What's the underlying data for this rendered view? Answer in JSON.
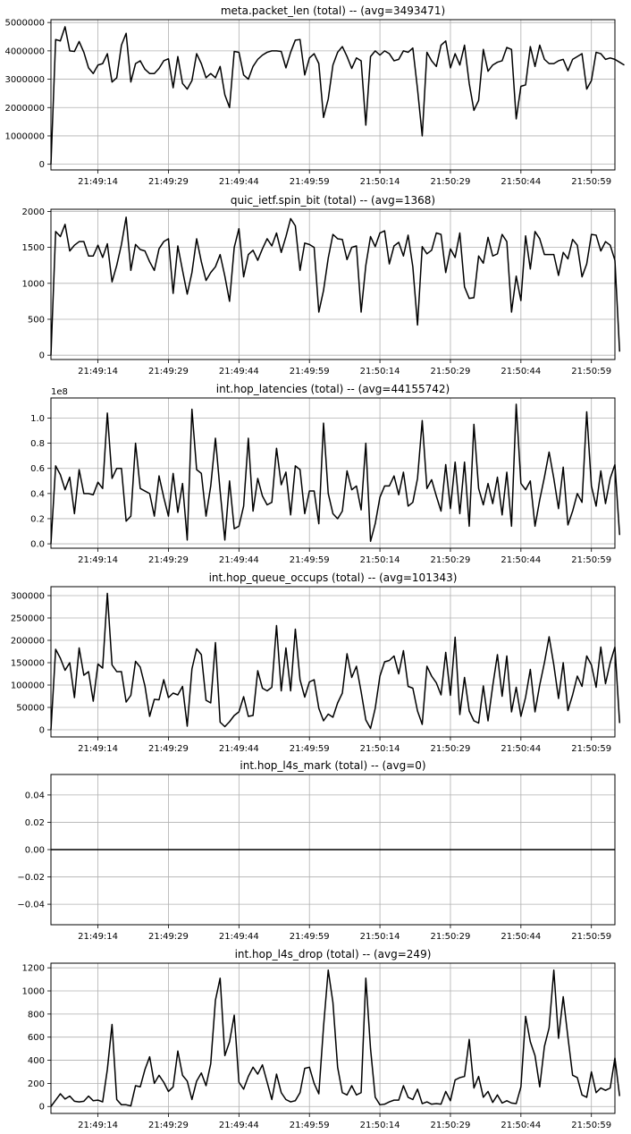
{
  "figure": {
    "background": "#ffffff",
    "line_color": "#000000",
    "grid_color": "#b0b0b0"
  },
  "chart_data": [
    {
      "type": "line",
      "title": "meta.packet_len (total) -- (avg=3493471)",
      "xticklabels": [
        "21:49:14",
        "21:49:29",
        "21:49:44",
        "21:49:59",
        "21:50:14",
        "21:50:29",
        "21:50:44",
        "21:50:59"
      ],
      "xtick_index": [
        10,
        25,
        40,
        55,
        70,
        85,
        100,
        115
      ],
      "x_count": 121,
      "ylim": [
        -200000,
        5100000
      ],
      "yticks": [
        0,
        1000000,
        2000000,
        3000000,
        4000000,
        5000000
      ],
      "yticklabels": [
        "0",
        "1000000",
        "2000000",
        "3000000",
        "4000000",
        "5000000"
      ],
      "offset_text": "",
      "grid": true,
      "values": [
        0,
        4400000,
        4350000,
        4850000,
        4000000,
        3980000,
        4330000,
        3950000,
        3400000,
        3200000,
        3500000,
        3550000,
        3900000,
        2900000,
        3050000,
        4200000,
        4620000,
        2900000,
        3550000,
        3650000,
        3350000,
        3200000,
        3200000,
        3380000,
        3650000,
        3720000,
        2700000,
        3800000,
        2850000,
        2650000,
        2950000,
        3900000,
        3550000,
        3050000,
        3200000,
        3050000,
        3450000,
        2450000,
        2000000,
        3980000,
        3950000,
        3150000,
        3000000,
        3450000,
        3700000,
        3850000,
        3950000,
        4000000,
        4000000,
        3980000,
        3400000,
        3950000,
        4380000,
        4400000,
        3150000,
        3750000,
        3900000,
        3550000,
        1650000,
        2300000,
        3500000,
        3950000,
        4150000,
        3800000,
        3380000,
        3750000,
        3650000,
        1380000,
        3800000,
        4000000,
        3850000,
        4000000,
        3900000,
        3650000,
        3700000,
        4000000,
        3950000,
        4100000,
        2650000,
        1000000,
        3950000,
        3650000,
        3450000,
        4200000,
        4350000,
        3400000,
        3900000,
        3500000,
        4200000,
        2850000,
        1900000,
        2250000,
        4050000,
        3280000,
        3500000,
        3600000,
        3650000,
        4120000,
        4050000,
        1600000,
        2750000,
        2800000,
        4150000,
        3450000,
        4200000,
        3700000,
        3550000,
        3550000,
        3650000,
        3700000,
        3300000,
        3700000,
        3800000,
        3900000,
        2650000,
        2950000,
        3950000,
        3900000,
        3700000,
        3750000,
        3700000,
        3600000,
        3500000
      ]
    },
    {
      "type": "line",
      "title": "quic_ietf.spin_bit (total) -- (avg=1368)",
      "xticklabels": [
        "21:49:14",
        "21:49:29",
        "21:49:44",
        "21:49:59",
        "21:50:14",
        "21:50:29",
        "21:50:44",
        "21:50:59"
      ],
      "xtick_index": [
        10,
        25,
        40,
        55,
        70,
        85,
        100,
        115
      ],
      "x_count": 121,
      "ylim": [
        -60,
        2030
      ],
      "yticks": [
        0,
        500,
        1000,
        1500,
        2000
      ],
      "yticklabels": [
        "0",
        "500",
        "1000",
        "1500",
        "2000"
      ],
      "offset_text": "",
      "grid": true,
      "values": [
        0,
        1720,
        1650,
        1820,
        1450,
        1530,
        1580,
        1580,
        1380,
        1380,
        1530,
        1360,
        1550,
        1020,
        1250,
        1540,
        1920,
        1180,
        1540,
        1470,
        1450,
        1300,
        1180,
        1480,
        1580,
        1620,
        860,
        1520,
        1180,
        850,
        1150,
        1620,
        1300,
        1040,
        1150,
        1230,
        1400,
        1100,
        750,
        1500,
        1760,
        1090,
        1400,
        1460,
        1320,
        1480,
        1620,
        1520,
        1700,
        1430,
        1650,
        1900,
        1800,
        1180,
        1560,
        1540,
        1500,
        600,
        900,
        1350,
        1680,
        1620,
        1610,
        1330,
        1500,
        1520,
        600,
        1250,
        1650,
        1510,
        1700,
        1730,
        1270,
        1520,
        1570,
        1380,
        1670,
        1230,
        420,
        1510,
        1410,
        1460,
        1700,
        1680,
        1150,
        1480,
        1360,
        1700,
        950,
        790,
        800,
        1380,
        1280,
        1640,
        1380,
        1410,
        1680,
        1580,
        600,
        1100,
        760,
        1660,
        1200,
        1720,
        1620,
        1400,
        1400,
        1400,
        1110,
        1430,
        1340,
        1610,
        1530,
        1090,
        1270,
        1680,
        1670,
        1450,
        1580,
        1530,
        1320,
        50
      ]
    },
    {
      "type": "line",
      "title": "int.hop_latencies (total) -- (avg=44155742)",
      "xticklabels": [
        "21:49:14",
        "21:49:29",
        "21:49:44",
        "21:49:59",
        "21:50:14",
        "21:50:29",
        "21:50:44",
        "21:50:59"
      ],
      "xtick_index": [
        10,
        25,
        40,
        55,
        70,
        85,
        100,
        115
      ],
      "x_count": 121,
      "ylim": [
        -3500000,
        116000000
      ],
      "yticks": [
        0,
        20000000,
        40000000,
        60000000,
        80000000,
        100000000
      ],
      "yticklabels": [
        "0.0",
        "0.2",
        "0.4",
        "0.6",
        "0.8",
        "1.0"
      ],
      "offset_text": "1e8",
      "grid": true,
      "values": [
        0,
        62000000,
        55000000,
        43000000,
        53000000,
        24000000,
        59000000,
        40000000,
        40000000,
        39000000,
        49000000,
        44000000,
        104000000,
        52000000,
        60000000,
        60000000,
        18000000,
        22000000,
        80000000,
        44000000,
        42000000,
        40000000,
        22000000,
        54000000,
        37000000,
        22000000,
        56000000,
        25000000,
        48000000,
        3000000,
        107000000,
        59000000,
        56000000,
        22000000,
        46000000,
        84000000,
        42000000,
        3000000,
        50000000,
        12000000,
        14000000,
        30000000,
        84000000,
        26000000,
        52000000,
        38000000,
        31000000,
        33000000,
        76000000,
        47000000,
        57000000,
        23000000,
        62000000,
        59000000,
        24000000,
        42000000,
        42000000,
        16000000,
        96000000,
        40000000,
        24000000,
        20000000,
        26000000,
        58000000,
        43000000,
        46000000,
        27000000,
        80000000,
        2000000,
        16000000,
        37000000,
        46000000,
        46000000,
        54000000,
        39000000,
        57000000,
        30000000,
        33000000,
        52000000,
        98000000,
        44000000,
        51000000,
        38000000,
        26000000,
        63000000,
        28000000,
        65000000,
        24000000,
        65000000,
        14000000,
        95000000,
        44000000,
        31000000,
        48000000,
        32000000,
        53000000,
        23000000,
        57000000,
        14000000,
        111000000,
        48000000,
        43000000,
        50000000,
        14000000,
        35000000,
        53000000,
        73000000,
        52000000,
        28000000,
        61000000,
        15000000,
        26000000,
        40000000,
        33000000,
        105000000,
        46000000,
        30000000,
        58000000,
        32000000,
        52000000,
        63000000,
        7000000
      ]
    },
    {
      "type": "line",
      "title": "int.hop_queue_occups (total) -- (avg=101343)",
      "xticklabels": [
        "21:49:14",
        "21:49:29",
        "21:49:44",
        "21:49:59",
        "21:50:14",
        "21:50:29",
        "21:50:44",
        "21:50:59"
      ],
      "xtick_index": [
        10,
        25,
        40,
        55,
        70,
        85,
        100,
        115
      ],
      "x_count": 121,
      "ylim": [
        -16000,
        320000
      ],
      "yticks": [
        0,
        50000,
        100000,
        150000,
        200000,
        250000,
        300000
      ],
      "yticklabels": [
        "0",
        "50000",
        "100000",
        "150000",
        "200000",
        "250000",
        "300000"
      ],
      "offset_text": "",
      "grid": true,
      "values": [
        0,
        180000,
        160000,
        133000,
        150000,
        72000,
        183000,
        122000,
        130000,
        64000,
        147000,
        138000,
        305000,
        145000,
        130000,
        130000,
        62000,
        77000,
        153000,
        140000,
        98000,
        30000,
        68000,
        67000,
        112000,
        72000,
        82000,
        78000,
        97000,
        8000,
        136000,
        181000,
        168000,
        66000,
        60000,
        195000,
        17000,
        7000,
        18000,
        32000,
        40000,
        74000,
        30000,
        32000,
        132000,
        93000,
        87000,
        95000,
        233000,
        87000,
        183000,
        87000,
        225000,
        112000,
        73000,
        107000,
        112000,
        48000,
        20000,
        35000,
        28000,
        60000,
        82000,
        170000,
        117000,
        142000,
        85000,
        22000,
        3000,
        48000,
        120000,
        152000,
        155000,
        165000,
        125000,
        177000,
        97000,
        93000,
        42000,
        12000,
        142000,
        120000,
        105000,
        78000,
        173000,
        77000,
        207000,
        34000,
        117000,
        42000,
        20000,
        15000,
        98000,
        20000,
        98000,
        168000,
        75000,
        165000,
        40000,
        95000,
        30000,
        73000,
        135000,
        40000,
        100000,
        150000,
        208000,
        145000,
        70000,
        150000,
        43000,
        78000,
        120000,
        97000,
        165000,
        145000,
        95000,
        185000,
        103000,
        150000,
        185000,
        15000
      ]
    },
    {
      "type": "line",
      "title": "int.hop_l4s_mark (total) -- (avg=0)",
      "xticklabels": [
        "21:49:14",
        "21:49:29",
        "21:49:44",
        "21:49:59",
        "21:50:14",
        "21:50:29",
        "21:50:44",
        "21:50:59"
      ],
      "xtick_index": [
        10,
        25,
        40,
        55,
        70,
        85,
        100,
        115
      ],
      "x_count": 121,
      "ylim": [
        -0.055,
        0.055
      ],
      "yticks": [
        -0.04,
        -0.02,
        0.0,
        0.02,
        0.04
      ],
      "yticklabels": [
        "−0.04",
        "−0.02",
        "0.00",
        "0.02",
        "0.04"
      ],
      "offset_text": "",
      "grid": true,
      "values": [
        0,
        0
      ]
    },
    {
      "type": "line",
      "title": "int.hop_l4s_drop (total) -- (avg=249)",
      "xticklabels": [
        "21:49:14",
        "21:49:29",
        "21:49:44",
        "21:49:59",
        "21:50:14",
        "21:50:29",
        "21:50:44",
        "21:50:59"
      ],
      "xtick_index": [
        10,
        25,
        40,
        55,
        70,
        85,
        100,
        115
      ],
      "x_count": 121,
      "ylim": [
        -60,
        1240
      ],
      "yticks": [
        0,
        200,
        400,
        600,
        800,
        1000,
        1200
      ],
      "yticklabels": [
        "0",
        "200",
        "400",
        "600",
        "800",
        "1000",
        "1200"
      ],
      "offset_text": "",
      "grid": true,
      "values": [
        0,
        55,
        110,
        65,
        90,
        45,
        40,
        45,
        90,
        50,
        55,
        40,
        320,
        710,
        60,
        15,
        15,
        5,
        180,
        170,
        320,
        430,
        200,
        270,
        210,
        130,
        170,
        480,
        270,
        220,
        60,
        220,
        290,
        180,
        370,
        920,
        1110,
        440,
        560,
        790,
        210,
        150,
        260,
        340,
        280,
        360,
        210,
        60,
        280,
        120,
        60,
        40,
        50,
        120,
        330,
        340,
        200,
        110,
        690,
        1180,
        900,
        340,
        120,
        100,
        180,
        100,
        120,
        1110,
        500,
        80,
        15,
        20,
        40,
        55,
        55,
        180,
        80,
        60,
        150,
        25,
        40,
        20,
        25,
        20,
        130,
        50,
        230,
        250,
        260,
        580,
        160,
        260,
        80,
        130,
        35,
        100,
        30,
        50,
        30,
        25,
        170,
        780,
        560,
        440,
        170,
        520,
        680,
        1180,
        590,
        950,
        600,
        270,
        250,
        100,
        80,
        300,
        120,
        160,
        140,
        160,
        420,
        90
      ]
    }
  ]
}
